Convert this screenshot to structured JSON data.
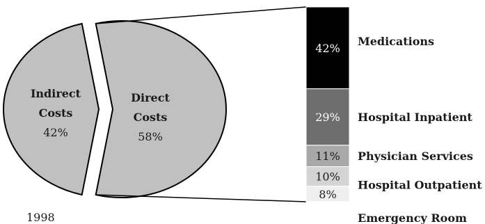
{
  "chart_data": {
    "type": "pie",
    "pie": {
      "slices": [
        {
          "label_line1": "Indirect",
          "label_line2": "Costs",
          "value": 42,
          "value_text": "42%",
          "color": "#c0c0c0"
        },
        {
          "label_line1": "Direct",
          "label_line2": "Costs",
          "value": 58,
          "value_text": "58%",
          "color": "#c0c0c0"
        }
      ]
    },
    "breakdown": {
      "of_slice": "Direct Costs",
      "type": "stacked-bar",
      "segments": [
        {
          "name": "Medications",
          "value": 42,
          "value_text": "42%",
          "color": "#000000",
          "text_color": "#ffffff"
        },
        {
          "name": "Hospital Inpatient",
          "value": 29,
          "value_text": "29%",
          "color": "#6e6e6e",
          "text_color": "#ffffff"
        },
        {
          "name": "Physician Services",
          "value": 11,
          "value_text": "11%",
          "color": "#a8a8a8",
          "text_color": "#1a1a1a"
        },
        {
          "name": "Hospital Outpatient",
          "value": 10,
          "value_text": "10%",
          "color": "#d4d4d4",
          "text_color": "#1a1a1a"
        },
        {
          "name": "Emergency Room",
          "value": 8,
          "value_text": "8%",
          "color": "#efefef",
          "text_color": "#1a1a1a"
        }
      ]
    },
    "footnote": "1998"
  }
}
